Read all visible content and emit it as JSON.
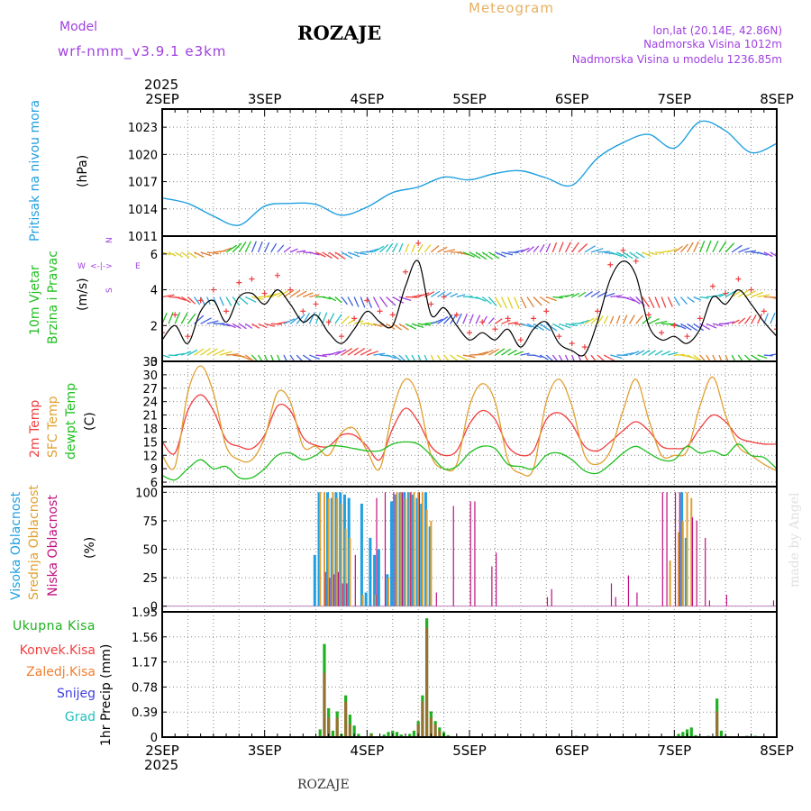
{
  "colors": {
    "model": "#a040e0",
    "meteogram": "#e8b060",
    "pressure": "#20a0e0",
    "wind_label": "#20c020",
    "temp2m": "#f04040",
    "sfc": "#e0a030",
    "dew": "#20c020",
    "high_cloud": "#20a0e0",
    "mid_cloud": "#e0a030",
    "low_cloud": "#c01080",
    "total_precip": "#20b020",
    "conv_precip": "#f04040",
    "frozen_precip": "#f08030",
    "snow": "#4040e0",
    "hail": "#20c0c0"
  },
  "header": {
    "model_label": "Model",
    "model_name": "wrf-nmm_v3.9.1  e3km",
    "station": "ROZAJE",
    "meteogram": "Meteogram",
    "lonlat": "lon,lat (20.14E, 42.86N)",
    "elevation": "Nadmorska Visina 1012m",
    "elevation_model": "Nadmorska Visina u modelu 1236.85m"
  },
  "footer": {
    "station": "ROZAJE",
    "credit": "made by Angel"
  },
  "compass": {
    "n": "N",
    "w": "W",
    "e": "E",
    "s": "S"
  },
  "panels": {
    "pressure": {
      "label": "Pritisak na nivou mora",
      "unit": "(hPa)"
    },
    "wind": {
      "label1": "10m Vjetar",
      "label2": "Brzina i Pravac",
      "unit": "(m/s)"
    },
    "temp": {
      "label_2m": "2m Temp",
      "label_sfc": "SFC Temp",
      "label_dew": "dewpt Temp",
      "unit": "(C)"
    },
    "cloud": {
      "label_high": "Visoka Oblacnost",
      "label_mid": "Srednja Oblacnost",
      "label_low": "Niska Oblacnost",
      "unit": "(%)"
    },
    "precip": {
      "total": "Ukupna Kisa",
      "conv": "Konvek.Kisa",
      "frozen": "Zaledj.Kisa",
      "snow": "Snijeg",
      "hail": "Grad",
      "unit": "1hr Precip (mm)"
    }
  },
  "chart_data": [
    {
      "type": "line",
      "title": "Pritisak na nivou mora",
      "ylabel": "(hPa)",
      "x_categories": [
        "2SEP",
        "3SEP",
        "4SEP",
        "5SEP",
        "6SEP",
        "7SEP",
        "8SEP"
      ],
      "year_label": "2025",
      "ylim": [
        1011,
        1025
      ],
      "yticks": [
        "1011",
        "1014",
        "1017",
        "1020",
        "1023"
      ],
      "x_hours": [
        0,
        6,
        12,
        18,
        24,
        30,
        36,
        42,
        48,
        54,
        60,
        66,
        72,
        78,
        84,
        90,
        96,
        102,
        108,
        114,
        120,
        126,
        132,
        138,
        144
      ],
      "values": [
        1015.2,
        1014.6,
        1013.2,
        1012.2,
        1014.3,
        1014.6,
        1014.5,
        1013.3,
        1014.2,
        1015.8,
        1016.4,
        1017.5,
        1017.2,
        1017.9,
        1018.2,
        1017.4,
        1016.6,
        1019.6,
        1021.3,
        1022.2,
        1020.7,
        1023.6,
        1022.6,
        1020.2,
        1021.2
      ]
    },
    {
      "type": "line",
      "title": "10m Vjetar Brzina i Pravac",
      "ylabel": "(m/s)",
      "ylim": [
        0,
        7
      ],
      "yticks": [
        "0",
        "2",
        "4",
        "6"
      ],
      "x_hours": [
        0,
        3,
        6,
        9,
        12,
        15,
        18,
        21,
        24,
        27,
        30,
        33,
        36,
        39,
        42,
        45,
        48,
        51,
        54,
        57,
        60,
        63,
        66,
        69,
        72,
        75,
        78,
        81,
        84,
        87,
        90,
        93,
        96,
        99,
        102,
        105,
        108,
        111,
        114,
        117,
        120,
        123,
        126,
        129,
        132,
        135,
        138,
        141,
        144
      ],
      "speed": [
        1.2,
        2.0,
        1.0,
        2.8,
        3.4,
        2.2,
        3.6,
        3.8,
        3.2,
        4.0,
        3.2,
        2.2,
        2.6,
        1.6,
        1.0,
        1.8,
        2.8,
        2.2,
        2.0,
        4.2,
        5.6,
        2.6,
        3.0,
        2.0,
        1.2,
        1.6,
        1.2,
        1.8,
        0.8,
        1.8,
        2.2,
        1.0,
        0.6,
        0.4,
        2.2,
        4.6,
        5.6,
        4.8,
        2.0,
        1.2,
        1.4,
        1.0,
        1.8,
        3.6,
        3.2,
        4.0,
        3.2,
        2.2,
        1.4
      ],
      "gust": [
        1.6,
        2.6,
        1.4,
        3.4,
        4.0,
        2.8,
        4.4,
        4.6,
        3.8,
        4.8,
        4.0,
        2.8,
        3.2,
        2.2,
        1.4,
        2.4,
        3.4,
        2.8,
        2.6,
        5.0,
        6.6,
        3.2,
        3.6,
        2.6,
        1.6,
        2.2,
        1.8,
        2.4,
        1.2,
        2.4,
        2.8,
        1.4,
        1.0,
        0.8,
        2.8,
        5.4,
        6.2,
        5.6,
        2.6,
        1.6,
        2.0,
        1.4,
        2.4,
        4.2,
        3.8,
        4.6,
        4.0,
        2.8,
        1.8
      ]
    },
    {
      "type": "line",
      "title": "Temperature",
      "ylabel": "(C)",
      "ylim": [
        5,
        33
      ],
      "yticks": [
        "6",
        "9",
        "12",
        "15",
        "18",
        "21",
        "24",
        "27",
        "30",
        "33"
      ],
      "x_hours": [
        0,
        3,
        6,
        9,
        12,
        15,
        18,
        21,
        24,
        27,
        30,
        33,
        36,
        39,
        42,
        45,
        48,
        51,
        54,
        57,
        60,
        63,
        66,
        69,
        72,
        75,
        78,
        81,
        84,
        87,
        90,
        93,
        96,
        99,
        102,
        105,
        108,
        111,
        114,
        117,
        120,
        123,
        126,
        129,
        132,
        135,
        138,
        141,
        144
      ],
      "series": [
        {
          "name": "2m Temp",
          "values": [
            15.0,
            12.5,
            22.0,
            25.5,
            22.0,
            15.5,
            14.0,
            13.5,
            16.5,
            23.0,
            22.0,
            16.0,
            14.2,
            14.0,
            16.5,
            16.5,
            14.0,
            11.0,
            18.0,
            22.5,
            19.5,
            14.0,
            12.0,
            13.0,
            19.0,
            22.0,
            20.0,
            14.0,
            12.0,
            13.0,
            20.0,
            21.5,
            19.0,
            14.0,
            13.0,
            15.0,
            17.5,
            19.5,
            17.5,
            14.0,
            13.5,
            14.0,
            18.0,
            21.0,
            19.5,
            16.0,
            15.0,
            14.5,
            14.5
          ]
        },
        {
          "name": "SFC Temp",
          "values": [
            12.0,
            9.5,
            26.0,
            32.0,
            26.0,
            14.0,
            11.0,
            11.0,
            16.0,
            26.0,
            24.0,
            14.0,
            14.0,
            12.0,
            17.0,
            18.0,
            13.0,
            9.0,
            22.0,
            29.0,
            25.0,
            12.0,
            9.0,
            10.0,
            23.0,
            28.0,
            24.0,
            11.0,
            8.0,
            9.0,
            24.0,
            29.0,
            23.0,
            12.0,
            10.0,
            13.0,
            22.0,
            29.0,
            20.0,
            12.0,
            12.0,
            13.0,
            23.0,
            29.5,
            21.0,
            14.0,
            12.0,
            10.0,
            8.5
          ]
        },
        {
          "name": "dewpt Temp",
          "values": [
            7.5,
            6.5,
            9.0,
            11.0,
            9.0,
            9.5,
            7.0,
            7.0,
            9.0,
            12.0,
            12.5,
            11.0,
            12.0,
            14.0,
            14.0,
            13.5,
            13.0,
            13.0,
            14.5,
            15.0,
            14.5,
            12.0,
            9.0,
            9.5,
            12.5,
            14.0,
            13.5,
            10.0,
            9.5,
            9.0,
            12.0,
            12.5,
            11.0,
            8.5,
            8.0,
            10.0,
            12.5,
            14.0,
            12.5,
            11.0,
            11.0,
            14.0,
            12.5,
            13.0,
            12.0,
            14.5,
            12.0,
            11.5,
            9.0
          ]
        }
      ]
    },
    {
      "type": "bar",
      "title": "Oblacnost",
      "ylabel": "(%)",
      "ylim": [
        0,
        100
      ],
      "yticks": [
        "0",
        "25",
        "50",
        "75",
        "100"
      ],
      "series": [
        {
          "name": "Visoka Oblacnost",
          "bars": [
            [
              36,
              45
            ],
            [
              37,
              100
            ],
            [
              39,
              100
            ],
            [
              40,
              95
            ],
            [
              41,
              100
            ],
            [
              42,
              100
            ],
            [
              43,
              98
            ],
            [
              44,
              95
            ],
            [
              47,
              90
            ],
            [
              48,
              12
            ],
            [
              49,
              60
            ],
            [
              50,
              45
            ],
            [
              51,
              50
            ],
            [
              53,
              28
            ],
            [
              54,
              92
            ],
            [
              55,
              98
            ],
            [
              56,
              100
            ],
            [
              57,
              100
            ],
            [
              58,
              100
            ],
            [
              59,
              98
            ],
            [
              60,
              95
            ],
            [
              61,
              90
            ],
            [
              62,
              100
            ],
            [
              63,
              70
            ],
            [
              122,
              100
            ],
            [
              123,
              60
            ]
          ]
        },
        {
          "name": "Srednja Oblacnost",
          "bars": [
            [
              37,
              100
            ],
            [
              38,
              100
            ],
            [
              39,
              95
            ],
            [
              40,
              100
            ],
            [
              41,
              95
            ],
            [
              42,
              90
            ],
            [
              43,
              68
            ],
            [
              44,
              60
            ],
            [
              47,
              10
            ],
            [
              50,
              10
            ],
            [
              53,
              25
            ],
            [
              55,
              100
            ],
            [
              56,
              100
            ],
            [
              57,
              95
            ],
            [
              58,
              100
            ],
            [
              59,
              100
            ],
            [
              60,
              100
            ],
            [
              61,
              100
            ],
            [
              62,
              85
            ],
            [
              63,
              75
            ],
            [
              119,
              40
            ],
            [
              121,
              65
            ],
            [
              122,
              75
            ],
            [
              123,
              100
            ],
            [
              124,
              95
            ]
          ]
        },
        {
          "name": "Niska Oblacnost",
          "bars": [
            [
              38,
              30
            ],
            [
              39,
              25
            ],
            [
              40,
              28
            ],
            [
              41,
              30
            ],
            [
              42,
              20
            ],
            [
              43,
              20
            ],
            [
              45,
              45
            ],
            [
              50,
              95
            ],
            [
              52,
              100
            ],
            [
              54,
              100
            ],
            [
              56,
              100
            ],
            [
              58,
              100
            ],
            [
              60,
              100
            ],
            [
              64,
              12
            ],
            [
              68,
              88
            ],
            [
              72,
              92
            ],
            [
              73,
              92
            ],
            [
              77,
              35
            ],
            [
              78,
              47
            ],
            [
              90,
              8
            ],
            [
              91,
              15
            ],
            [
              105,
              20
            ],
            [
              106,
              8
            ],
            [
              109,
              27
            ],
            [
              111,
              12
            ],
            [
              117,
              100
            ],
            [
              118,
              100
            ],
            [
              120,
              100
            ],
            [
              121,
              100
            ],
            [
              124,
              78
            ],
            [
              125,
              75
            ],
            [
              127,
              60
            ],
            [
              128,
              5
            ],
            [
              132,
              10
            ],
            [
              143,
              5
            ]
          ]
        }
      ]
    },
    {
      "type": "bar",
      "title": "1hr Precip",
      "ylabel": "1hr Precip (mm)",
      "ylim": [
        0,
        1.95
      ],
      "yticks": [
        "0",
        "0.39",
        "0.78",
        "1.17",
        "1.56",
        "1.95"
      ],
      "x_categories": [
        "2SEP",
        "3SEP",
        "4SEP",
        "5SEP",
        "6SEP",
        "7SEP",
        "8SEP"
      ],
      "year_label": "2025",
      "series": [
        {
          "name": "Ukupna Kisa",
          "bars": [
            [
              37,
              0.12
            ],
            [
              38,
              1.45
            ],
            [
              39,
              0.45
            ],
            [
              40,
              0.1
            ],
            [
              41,
              0.4
            ],
            [
              42,
              0.05
            ],
            [
              43,
              0.65
            ],
            [
              44,
              0.35
            ],
            [
              45,
              0.18
            ],
            [
              46,
              0.05
            ],
            [
              49,
              0.06
            ],
            [
              52,
              0.04
            ],
            [
              53,
              0.08
            ],
            [
              54,
              0.1
            ],
            [
              55,
              0.08
            ],
            [
              56,
              0.04
            ],
            [
              58,
              0.05
            ],
            [
              59,
              0.1
            ],
            [
              60,
              0.25
            ],
            [
              61,
              0.65
            ],
            [
              62,
              1.85
            ],
            [
              63,
              0.4
            ],
            [
              64,
              0.25
            ],
            [
              65,
              0.15
            ],
            [
              66,
              0.08
            ],
            [
              67,
              0.03
            ],
            [
              97,
              0.02
            ],
            [
              121,
              0.05
            ],
            [
              122,
              0.08
            ],
            [
              123,
              0.12
            ],
            [
              124,
              0.15
            ],
            [
              125,
              0.03
            ],
            [
              128,
              0.02
            ],
            [
              130,
              0.6
            ],
            [
              131,
              0.1
            ],
            [
              132,
              0.02
            ],
            [
              137,
              0.02
            ],
            [
              139,
              0.02
            ]
          ]
        },
        {
          "name": "Konvek.Kisa",
          "bars": [
            [
              38,
              1.0
            ],
            [
              39,
              0.3
            ],
            [
              41,
              0.3
            ],
            [
              43,
              0.55
            ],
            [
              44,
              0.2
            ],
            [
              49,
              0.04
            ],
            [
              60,
              0.2
            ],
            [
              61,
              0.55
            ],
            [
              62,
              1.7
            ],
            [
              63,
              0.3
            ],
            [
              64,
              0.2
            ],
            [
              65,
              0.1
            ],
            [
              130,
              0.4
            ]
          ]
        }
      ]
    }
  ]
}
